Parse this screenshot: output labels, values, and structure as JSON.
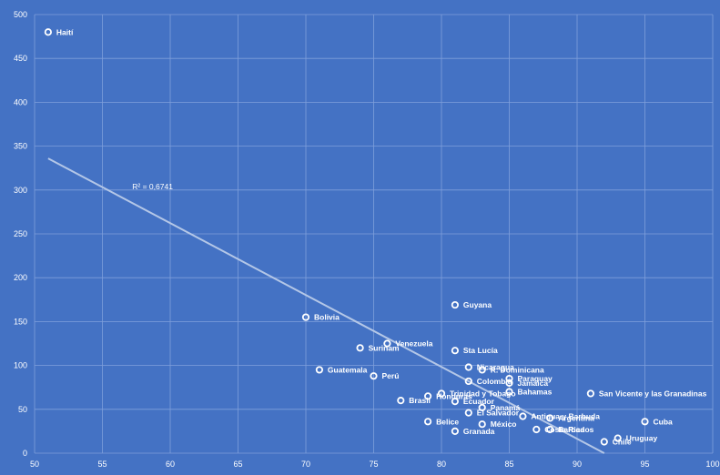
{
  "chart_data": {
    "type": "scatter",
    "xlim": [
      50,
      100
    ],
    "ylim": [
      0,
      500
    ],
    "x_ticks": [
      50,
      55,
      60,
      65,
      70,
      75,
      80,
      85,
      90,
      95,
      100
    ],
    "y_ticks": [
      0,
      50,
      100,
      150,
      200,
      250,
      300,
      350,
      400,
      450,
      500
    ],
    "grid": true,
    "colors": {
      "plot_bg": "#4472C4",
      "grid": "#7f9fdb",
      "points": "#ffffff",
      "trendline": "#b4c7e7"
    },
    "trendline": {
      "type": "linear",
      "r2_label": "R² = 0,6741",
      "x_start": 51,
      "y_start": 336,
      "x_end": 92,
      "y_end": 0
    },
    "points": [
      {
        "label": "Haití",
        "x": 51,
        "y": 480
      },
      {
        "label": "Bolivia",
        "x": 70,
        "y": 155
      },
      {
        "label": "Guyana",
        "x": 81,
        "y": 169
      },
      {
        "label": "Venezuela",
        "x": 76,
        "y": 125
      },
      {
        "label": "Surinam",
        "x": 74,
        "y": 120
      },
      {
        "label": "Sta Lucía",
        "x": 81,
        "y": 117
      },
      {
        "label": "Guatemala",
        "x": 71,
        "y": 95
      },
      {
        "label": "Perú",
        "x": 75,
        "y": 88
      },
      {
        "label": "Nicaragua",
        "x": 82,
        "y": 98
      },
      {
        "label": "R. Dominicana",
        "x": 83,
        "y": 95
      },
      {
        "label": "Paraguay",
        "x": 85,
        "y": 85
      },
      {
        "label": "Colombia",
        "x": 82,
        "y": 82
      },
      {
        "label": "Jamaica",
        "x": 85,
        "y": 80
      },
      {
        "label": "Bahamas",
        "x": 85,
        "y": 70
      },
      {
        "label": "San Vicente y las Granadinas",
        "x": 91,
        "y": 68
      },
      {
        "label": "Trinidad y Tobago",
        "x": 80,
        "y": 68
      },
      {
        "label": "Honduras",
        "x": 79,
        "y": 65
      },
      {
        "label": "Brasil",
        "x": 77,
        "y": 60
      },
      {
        "label": "Ecuador",
        "x": 81,
        "y": 59
      },
      {
        "label": "Panamá",
        "x": 83,
        "y": 52
      },
      {
        "label": "El Salvador",
        "x": 82,
        "y": 46
      },
      {
        "label": "Antigua y Barbuda",
        "x": 86,
        "y": 42
      },
      {
        "label": "Argentina",
        "x": 88,
        "y": 40
      },
      {
        "label": "Belice",
        "x": 79,
        "y": 36
      },
      {
        "label": "México",
        "x": 83,
        "y": 33
      },
      {
        "label": "Cuba",
        "x": 95,
        "y": 36
      },
      {
        "label": "Costa Rica",
        "x": 87,
        "y": 27
      },
      {
        "label": "Barbados",
        "x": 88,
        "y": 27
      },
      {
        "label": "Granada",
        "x": 81,
        "y": 25
      },
      {
        "label": "Uruguay",
        "x": 93,
        "y": 17
      },
      {
        "label": "Chile",
        "x": 92,
        "y": 13
      }
    ]
  }
}
